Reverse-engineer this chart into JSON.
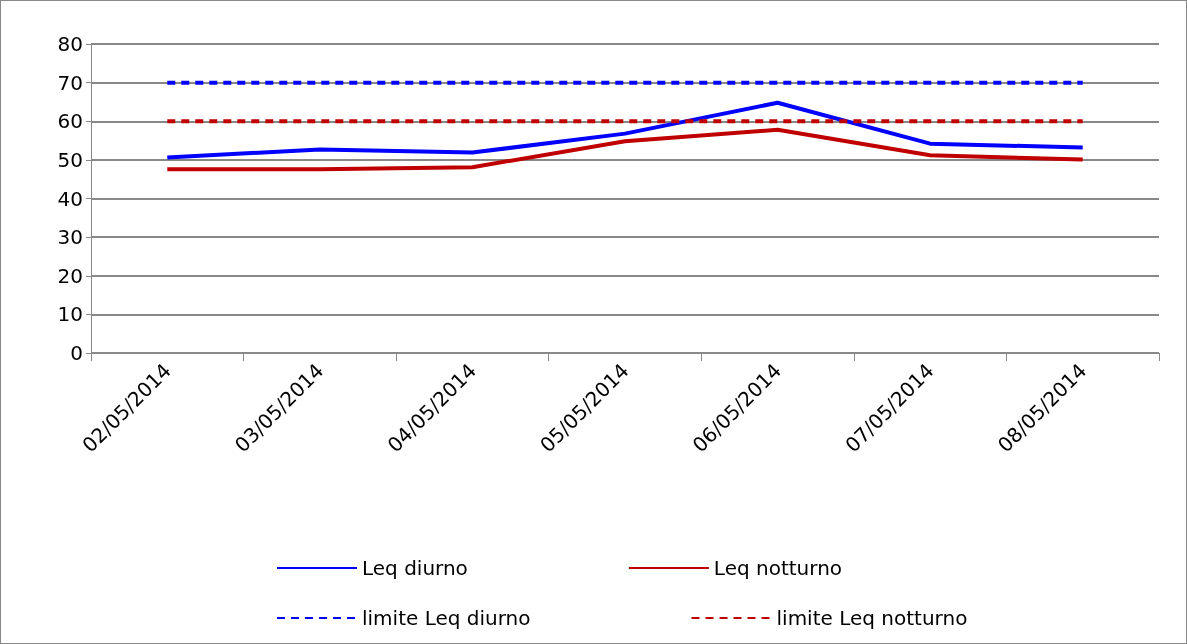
{
  "chart_data": {
    "type": "line",
    "categories": [
      "02/05/2014",
      "03/05/2014",
      "04/05/2014",
      "05/05/2014",
      "06/05/2014",
      "07/05/2014",
      "08/05/2014"
    ],
    "series": [
      {
        "name": "Leq diurno",
        "color": "#0000ff",
        "values": [
          50.6,
          52.7,
          51.9,
          56.8,
          64.8,
          54.2,
          53.2
        ]
      },
      {
        "name": "Leq notturno",
        "color": "#c00000",
        "values": [
          47.6,
          47.6,
          48.1,
          54.8,
          57.8,
          51.2,
          50.1
        ]
      },
      {
        "name": "limite Leq diurno",
        "color": "#0000ff",
        "line_style": "dashed",
        "values": [
          70,
          70,
          70,
          70,
          70,
          70,
          70
        ]
      },
      {
        "name": "limite Leq notturno",
        "color": "#c00000",
        "line_style": "dashed",
        "values": [
          60,
          60,
          60,
          60,
          60,
          60,
          60
        ]
      }
    ],
    "ylim": [
      0,
      80
    ],
    "yticks": [
      0,
      10,
      20,
      30,
      40,
      50,
      60,
      70,
      80
    ],
    "grid": "y",
    "legend": "bottom",
    "marker": "none"
  }
}
